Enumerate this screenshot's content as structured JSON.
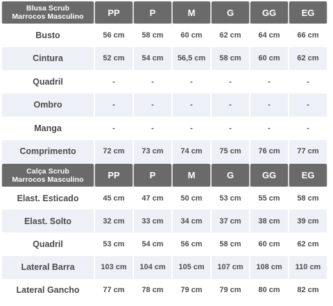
{
  "tables": [
    {
      "title_line1": "Blusa Scrub",
      "title_line2": "Marrocos Masculino",
      "sizes": [
        "PP",
        "P",
        "M",
        "G",
        "GG",
        "EG"
      ],
      "rows": [
        {
          "label": "Busto",
          "values": [
            "56 cm",
            "58 cm",
            "60 cm",
            "62 cm",
            "64 cm",
            "66 cm"
          ]
        },
        {
          "label": "Cintura",
          "values": [
            "52 cm",
            "54 cm",
            "56,5 cm",
            "58 cm",
            "60 cm",
            "62 cm"
          ]
        },
        {
          "label": "Quadril",
          "values": [
            "-",
            "-",
            "-",
            "-",
            "-",
            "-"
          ]
        },
        {
          "label": "Ombro",
          "values": [
            "-",
            "-",
            "-",
            "-",
            "-",
            "-"
          ]
        },
        {
          "label": "Manga",
          "values": [
            "-",
            "-",
            "-",
            "-",
            "-",
            "-"
          ]
        },
        {
          "label": "Comprimento",
          "values": [
            "72 cm",
            "73 cm",
            "74 cm",
            "75 cm",
            "76 cm",
            "77 cm"
          ]
        }
      ]
    },
    {
      "title_line1": "Calça Scrub",
      "title_line2": "Marrocos Masculino",
      "sizes": [
        "PP",
        "P",
        "M",
        "G",
        "GG",
        "EG"
      ],
      "rows": [
        {
          "label": "Elast. Esticado",
          "values": [
            "45 cm",
            "47 cm",
            "50 cm",
            "53 cm",
            "55 cm",
            "58 cm"
          ]
        },
        {
          "label": "Elast. Solto",
          "values": [
            "32 cm",
            "33 cm",
            "34 cm",
            "37 cm",
            "38 cm",
            "39 cm"
          ]
        },
        {
          "label": "Quadril",
          "values": [
            "53 cm",
            "54 cm",
            "56 cm",
            "58 cm",
            "60 cm",
            "62 cm"
          ]
        },
        {
          "label": "Lateral Barra",
          "values": [
            "103 cm",
            "104 cm",
            "105 cm",
            "107 cm",
            "108 cm",
            "110 cm"
          ]
        },
        {
          "label": "Lateral Gancho",
          "values": [
            "77 cm",
            "78 cm",
            "79 cm",
            "79 cm",
            "80 cm",
            "82 cm"
          ]
        }
      ]
    }
  ],
  "colors": {
    "header_bg": "#6a6a6a",
    "header_text": "#ffffff",
    "row_alt_bg": "#eef0f7",
    "text": "#4d4d4d"
  }
}
